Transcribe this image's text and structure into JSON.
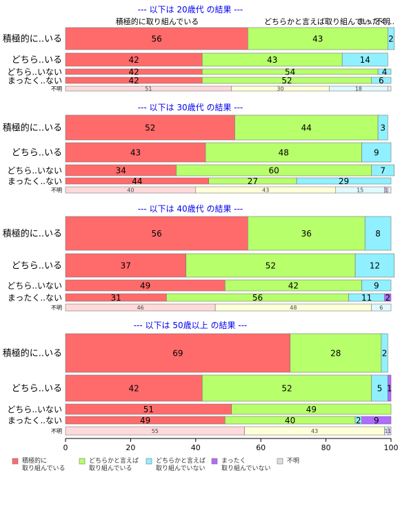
{
  "chart_data": {
    "type": "bar",
    "orientation": "horizontal",
    "stacked": true,
    "xlim": [
      0,
      100
    ],
    "x_ticks": [
      "0",
      "20",
      "40",
      "60",
      "80",
      "100"
    ],
    "top_header_labels": [
      "積極的に取り組んでいる",
      "どちらかと言えば取り組んでい...",
      "まったく...",
      "不明"
    ],
    "colors": [
      "#FF6B6B",
      "#B7FF6B",
      "#90F0FF",
      "#B06BFF",
      "#DDDDDD"
    ],
    "legend": [
      {
        "line1": "積極的に",
        "line2": "取り組んでいる"
      },
      {
        "line1": "どちらかと言えば",
        "line2": "取り組んでいる"
      },
      {
        "line1": "どちらかと言えば",
        "line2": "取り組んでいない"
      },
      {
        "line1": "まったく",
        "line2": "取り組んでいない"
      },
      {
        "line1": "不明",
        "line2": ""
      }
    ],
    "panels": [
      {
        "title": "--- 以下は 20歳代 の結果 ---",
        "rows": [
          {
            "label": "積極的に..いる",
            "values": [
              56,
              43,
              2,
              0,
              0
            ],
            "labels": [
              "56",
              "43",
              "2",
              "",
              ""
            ]
          },
          {
            "label": "どちら..いる",
            "values": [
              42,
              43,
              14,
              0,
              0
            ],
            "labels": [
              "42",
              "43",
              "14",
              "",
              ""
            ]
          },
          {
            "label": "どちら..いない",
            "values": [
              42,
              54,
              4,
              0,
              0
            ],
            "labels": [
              "42",
              "54",
              "4",
              "",
              ""
            ]
          },
          {
            "label": "まったく..ない",
            "values": [
              42,
              52,
              6,
              0,
              0
            ],
            "labels": [
              "42",
              "52",
              "6",
              "",
              ""
            ]
          },
          {
            "label": "不明",
            "values": [
              51,
              30,
              18,
              0,
              1
            ],
            "labels": [
              "51",
              "30",
              "18",
              "",
              ""
            ]
          }
        ]
      },
      {
        "title": "--- 以下は 30歳代 の結果 ---",
        "rows": [
          {
            "label": "積極的に..いる",
            "values": [
              52,
              44,
              3,
              0,
              0
            ],
            "labels": [
              "52",
              "44",
              "3",
              "",
              ""
            ]
          },
          {
            "label": "どちら..いる",
            "values": [
              43,
              48,
              9,
              0,
              0
            ],
            "labels": [
              "43",
              "48",
              "9",
              "",
              ""
            ]
          },
          {
            "label": "どちら..いない",
            "values": [
              34,
              60,
              7,
              0,
              0
            ],
            "labels": [
              "34",
              "60",
              "7",
              "",
              ""
            ]
          },
          {
            "label": "まったく..ない",
            "values": [
              44,
              27,
              29,
              0,
              0
            ],
            "labels": [
              "44",
              "27",
              "29",
              "",
              ""
            ]
          },
          {
            "label": "不明",
            "values": [
              40,
              43,
              15,
              1,
              1
            ],
            "labels": [
              "40",
              "43",
              "15",
              "1",
              ""
            ]
          }
        ]
      },
      {
        "title": "--- 以下は 40歳代 の結果 ---",
        "rows": [
          {
            "label": "積極的に..いる",
            "values": [
              56,
              36,
              8,
              0,
              0
            ],
            "labels": [
              "56",
              "36",
              "8",
              "",
              ""
            ]
          },
          {
            "label": "どちら..いる",
            "values": [
              37,
              52,
              12,
              0,
              0
            ],
            "labels": [
              "37",
              "52",
              "12",
              "",
              ""
            ]
          },
          {
            "label": "どちら..いない",
            "values": [
              49,
              42,
              9,
              0,
              0
            ],
            "labels": [
              "49",
              "42",
              "9",
              "",
              ""
            ]
          },
          {
            "label": "まったく..ない",
            "values": [
              31,
              56,
              11,
              2,
              0
            ],
            "labels": [
              "31",
              "56",
              "11",
              "2",
              ""
            ]
          },
          {
            "label": "不明",
            "values": [
              46,
              48,
              6,
              0,
              0
            ],
            "labels": [
              "46",
              "48",
              "6",
              "",
              ""
            ]
          }
        ]
      },
      {
        "title": "--- 以下は 50歳以上 の結果 ---",
        "rows": [
          {
            "label": "積極的に..いる",
            "values": [
              69,
              28,
              2,
              0,
              0
            ],
            "labels": [
              "69",
              "28",
              "2",
              "",
              ""
            ]
          },
          {
            "label": "どちら..いる",
            "values": [
              42,
              52,
              5,
              1,
              0
            ],
            "labels": [
              "42",
              "52",
              "5",
              "1",
              ""
            ]
          },
          {
            "label": "どちら..いない",
            "values": [
              51,
              49,
              0,
              0,
              0
            ],
            "labels": [
              "51",
              "49",
              "",
              "",
              ""
            ]
          },
          {
            "label": "まったく..ない",
            "values": [
              49,
              40,
              2,
              9,
              0
            ],
            "labels": [
              "49",
              "40",
              "2",
              "9",
              ""
            ]
          },
          {
            "label": "不明",
            "values": [
              55,
              43,
              1,
              1,
              0
            ],
            "labels": [
              "55",
              "43",
              "1",
              "1",
              ""
            ]
          }
        ]
      }
    ]
  }
}
